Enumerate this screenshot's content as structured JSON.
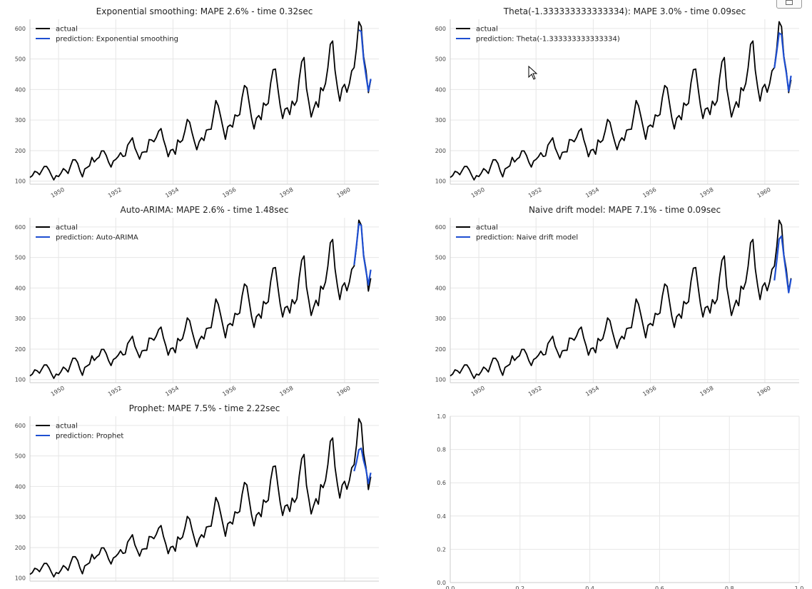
{
  "colors": {
    "actual": "#000000",
    "prediction": "#1f4fd1",
    "grid": "#e6e6e6",
    "text": "#222222"
  },
  "chart_data": [
    {
      "type": "line",
      "title": "Exponential smoothing: MAPE 2.6% - time 0.32sec",
      "legend": [
        "actual",
        "prediction: Exponential smoothing"
      ],
      "legend_position": "top-left",
      "xticks": [
        "1950",
        "1952",
        "1954",
        "1956",
        "1958",
        "1960"
      ],
      "yticks": [
        "100",
        "200",
        "300",
        "400",
        "500",
        "600"
      ],
      "ylim": [
        90,
        630
      ],
      "grid": true,
      "series": [
        {
          "name": "actual",
          "ref": "airline_actual"
        },
        {
          "name": "prediction: Exponential smoothing",
          "x": [
            "1960-07",
            "1960-08",
            "1960-09",
            "1960-10",
            "1960-11",
            "1960-12"
          ],
          "values": [
            595,
            590,
            500,
            445,
            395,
            435
          ]
        }
      ]
    },
    {
      "type": "line",
      "title": "Theta(-1.333333333333334): MAPE 3.0% - time 0.09sec",
      "legend": [
        "actual",
        "prediction: Theta(-1.333333333333334)"
      ],
      "legend_position": "top-left",
      "xticks": [
        "1950",
        "1952",
        "1954",
        "1956",
        "1958",
        "1960"
      ],
      "yticks": [
        "100",
        "200",
        "300",
        "400",
        "500",
        "600"
      ],
      "ylim": [
        90,
        630
      ],
      "grid": true,
      "series": [
        {
          "name": "actual",
          "ref": "airline_actual"
        },
        {
          "name": "prediction: Theta(-1.333333333333334)",
          "x": [
            "1960-05",
            "1960-06",
            "1960-07",
            "1960-08",
            "1960-09",
            "1960-10",
            "1960-11",
            "1960-12"
          ],
          "values": [
            470,
            525,
            585,
            580,
            505,
            455,
            395,
            445
          ]
        }
      ]
    },
    {
      "type": "line",
      "title": "Auto-ARIMA: MAPE 2.6% - time 1.48sec",
      "legend": [
        "actual",
        "prediction: Auto-ARIMA"
      ],
      "legend_position": "top-left",
      "xticks": [
        "1950",
        "1952",
        "1954",
        "1956",
        "1958",
        "1960"
      ],
      "yticks": [
        "100",
        "200",
        "300",
        "400",
        "500",
        "600"
      ],
      "ylim": [
        90,
        630
      ],
      "grid": true,
      "series": [
        {
          "name": "actual",
          "ref": "airline_actual"
        },
        {
          "name": "prediction: Auto-ARIMA",
          "x": [
            "1960-05",
            "1960-06",
            "1960-07",
            "1960-08",
            "1960-09",
            "1960-10",
            "1960-11",
            "1960-12"
          ],
          "values": [
            475,
            540,
            610,
            605,
            505,
            455,
            410,
            460
          ]
        }
      ]
    },
    {
      "type": "line",
      "title": "Naive drift model: MAPE 7.1% - time 0.09sec",
      "legend": [
        "actual",
        "prediction: Naive drift model"
      ],
      "legend_position": "top-left",
      "xticks": [
        "1950",
        "1952",
        "1954",
        "1956",
        "1958",
        "1960"
      ],
      "yticks": [
        "100",
        "200",
        "300",
        "400",
        "500",
        "600"
      ],
      "ylim": [
        90,
        630
      ],
      "grid": true,
      "series": [
        {
          "name": "actual",
          "ref": "airline_actual"
        },
        {
          "name": "prediction: Naive drift model",
          "x": [
            "1960-05",
            "1960-06",
            "1960-07",
            "1960-08",
            "1960-09",
            "1960-10",
            "1960-11",
            "1960-12"
          ],
          "values": [
            425,
            490,
            560,
            570,
            505,
            445,
            385,
            430
          ]
        }
      ]
    },
    {
      "type": "line",
      "title": "Prophet: MAPE 7.5% - time 2.22sec",
      "legend": [
        "actual",
        "prediction: Prophet"
      ],
      "legend_position": "top-left",
      "xticks": [],
      "yticks": [
        "100",
        "200",
        "300",
        "400",
        "500",
        "600"
      ],
      "ylim": [
        90,
        630
      ],
      "grid": true,
      "series": [
        {
          "name": "actual",
          "ref": "airline_actual"
        },
        {
          "name": "prediction: Prophet",
          "x": [
            "1960-05",
            "1960-06",
            "1960-07",
            "1960-08",
            "1960-09",
            "1960-10",
            "1960-11",
            "1960-12"
          ],
          "values": [
            450,
            480,
            520,
            525,
            485,
            455,
            410,
            445
          ]
        }
      ]
    },
    {
      "type": "line",
      "title": "",
      "legend": [],
      "xticks": [
        "0.0",
        "0.2",
        "0.4",
        "0.6",
        "0.8",
        "1.0"
      ],
      "yticks": [
        "0.0",
        "0.2",
        "0.4",
        "0.6",
        "0.8",
        "1.0"
      ],
      "xlim": [
        0,
        1
      ],
      "ylim": [
        0,
        1
      ],
      "grid": true,
      "series": []
    }
  ],
  "airline_actual": {
    "x_start": "1949-01",
    "frequency": "monthly",
    "values": [
      112,
      118,
      132,
      129,
      121,
      135,
      148,
      148,
      136,
      119,
      104,
      118,
      115,
      126,
      141,
      135,
      125,
      149,
      170,
      170,
      158,
      133,
      114,
      140,
      145,
      150,
      178,
      163,
      172,
      178,
      199,
      199,
      184,
      162,
      146,
      166,
      171,
      180,
      193,
      181,
      183,
      218,
      230,
      242,
      209,
      191,
      172,
      194,
      196,
      196,
      236,
      235,
      229,
      243,
      264,
      272,
      237,
      211,
      180,
      201,
      204,
      188,
      235,
      227,
      234,
      264,
      302,
      293,
      259,
      229,
      203,
      229,
      242,
      233,
      267,
      269,
      270,
      315,
      364,
      347,
      312,
      274,
      237,
      278,
      284,
      277,
      317,
      313,
      318,
      374,
      413,
      405,
      355,
      306,
      271,
      306,
      315,
      301,
      356,
      348,
      355,
      422,
      465,
      467,
      404,
      347,
      305,
      336,
      340,
      318,
      362,
      348,
      363,
      435,
      491,
      505,
      404,
      359,
      310,
      337,
      360,
      342,
      406,
      396,
      420,
      472,
      548,
      559,
      463,
      407,
      362,
      405,
      417,
      391,
      419,
      461,
      472,
      535,
      622,
      606,
      508,
      461,
      390,
      432
    ]
  }
}
